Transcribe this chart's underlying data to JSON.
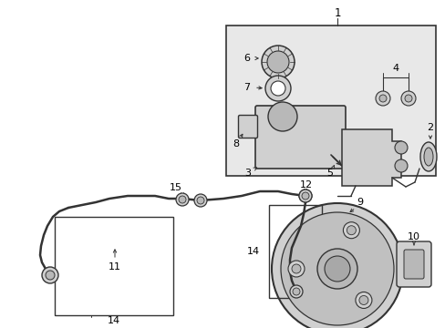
{
  "background_color": "#ffffff",
  "line_color": "#333333",
  "text_color": "#000000",
  "fig_width": 4.89,
  "fig_height": 3.6,
  "dpi": 100,
  "box_fill": "#e8e8e8",
  "part_fill": "#d0d0d0",
  "part_fill2": "#b8b8b8"
}
